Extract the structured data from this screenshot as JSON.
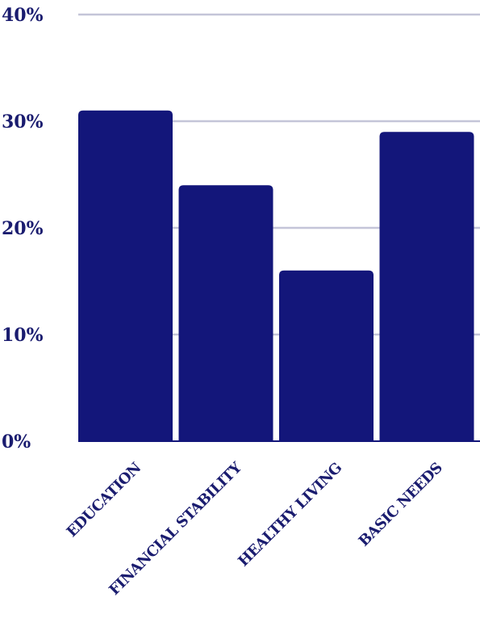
{
  "chart_data": {
    "type": "bar",
    "title": "",
    "xlabel": "",
    "ylabel": "",
    "categories": [
      "EDUCATION",
      "FINANCIAL STABILITY",
      "HEALTHY LIVING",
      "BASIC NEEDS"
    ],
    "values": [
      31,
      24,
      16,
      29
    ],
    "ylim": [
      0,
      40
    ],
    "yticks": [
      0,
      10,
      20,
      30,
      40
    ],
    "ytick_labels": [
      "0%",
      "10%",
      "20%",
      "30%",
      "40%"
    ],
    "grid": true,
    "legend": "none"
  },
  "colors": {
    "bar": "#13167a",
    "text": "#1a1c6f",
    "grid": "#c4c5d8",
    "axis": "#13167a"
  }
}
